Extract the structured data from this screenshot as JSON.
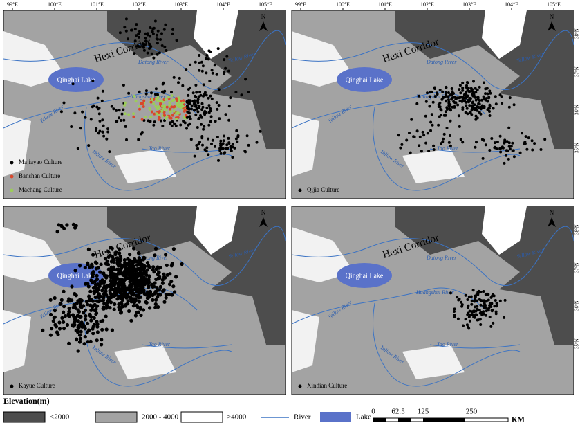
{
  "longitude_labels": [
    "99°E",
    "100°E",
    "101°E",
    "102°E",
    "103°E",
    "104°E",
    "105°E"
  ],
  "latitude_labels": [
    "38°N",
    "37°N",
    "36°N",
    "35°N"
  ],
  "north": "N",
  "places": {
    "corridor": "Hexi Corridor",
    "lake": "Qinghai Lake",
    "datong": "Datong River",
    "huangshui": "Huangshui River",
    "yellow": "Yellow River",
    "tao": "Tao River"
  },
  "panels": [
    {
      "legend": [
        {
          "label": "Majiayao Culture",
          "color": "#000000"
        },
        {
          "label": "Banshan Culture",
          "color": "#d9472b"
        },
        {
          "label": "Machang Culture",
          "color": "#9ccc5a"
        }
      ]
    },
    {
      "legend": [
        {
          "label": "Qijia Culture",
          "color": "#000000"
        }
      ]
    },
    {
      "legend": [
        {
          "label": "Kayue Culture",
          "color": "#000000"
        }
      ]
    },
    {
      "legend": [
        {
          "label": "Xindian Culture",
          "color": "#000000"
        }
      ]
    }
  ],
  "legend": {
    "title": "Elevation(m)",
    "low": "<2000",
    "mid": "2000 - 4000",
    "high": ">4000",
    "river": "River",
    "lake": "Lake"
  },
  "scale": {
    "labels": [
      "0",
      "62.5",
      "125",
      "250"
    ],
    "unit": "KM"
  }
}
